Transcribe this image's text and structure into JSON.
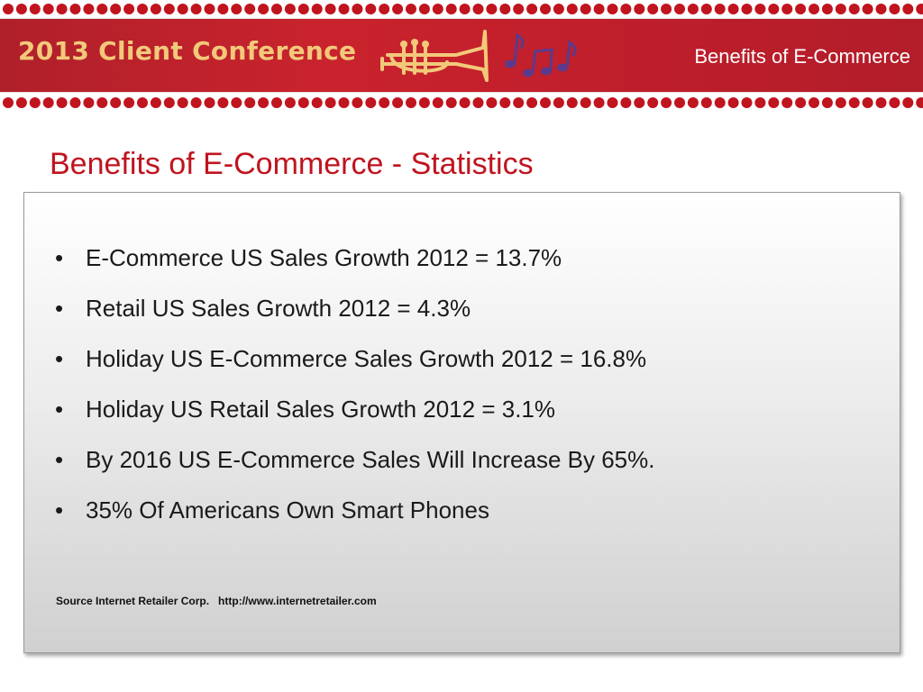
{
  "header": {
    "conference_label": "2013 Client Conference",
    "section_title": "Benefits of E-Commerce",
    "emblem_icon": "trumpet-and-music-notes-icon"
  },
  "slide": {
    "title": "Benefits of E-Commerce - Statistics",
    "bullets": [
      "E-Commerce US Sales Growth 2012 = 13.7%",
      "Retail US Sales Growth 2012 = 4.3%",
      "Holiday US E-Commerce Sales Growth 2012 = 16.8%",
      "Holiday US Retail Sales Growth 2012 = 3.1%",
      "By 2016 US E-Commerce Sales Will Increase By 65%.",
      "35% Of Americans Own Smart Phones"
    ],
    "bullet_glyph": "•",
    "source": "Source Internet Retailer Corp.   http://www.internetretailer.com"
  },
  "colors": {
    "banner_red": "#c9232d",
    "dot_red": "#c0141f",
    "logo_gold": "#f2c97a",
    "title_red": "#c0141f",
    "note_purple": "#5b3a8c"
  }
}
